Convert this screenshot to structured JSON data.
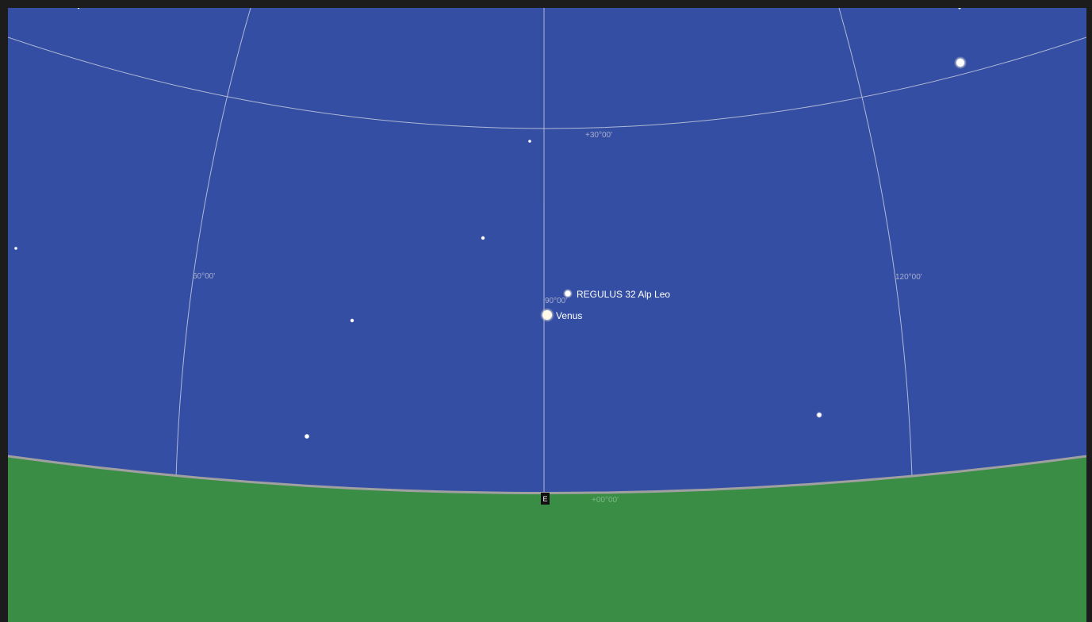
{
  "colors": {
    "frame": "#1c1c1c",
    "sky": "#344ea3",
    "ground": "#3a8d45",
    "horizon": "#a0a0a0",
    "grid": "#c6cbe0",
    "grid_label": "#a8b0d0",
    "star": "#ffffff",
    "star_glow": "#fff6e6",
    "label_text": "#ffffff"
  },
  "grid_labels": {
    "alt_30": "+30°00'",
    "alt_0": "+00°00'",
    "az_60": "60°00'",
    "az_90": "90°00'",
    "az_120": "120°00'"
  },
  "objects": {
    "regulus": {
      "label": "REGULUS 32 Alp Leo",
      "icon": "star-icon"
    },
    "venus": {
      "label": "Venus",
      "icon": "planet-icon"
    }
  },
  "compass": {
    "label": "E"
  }
}
